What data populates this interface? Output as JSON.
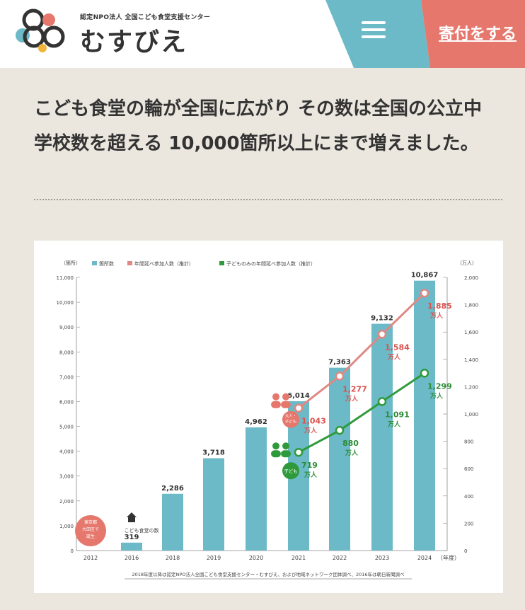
{
  "header": {
    "org_subtitle": "認定NPO法人 全国こども食堂支援センター",
    "org_name": "むすびえ",
    "donate_label": "寄付をする"
  },
  "main": {
    "headline_line1": "こども食堂の輪が全国に広がり その数は全国の公立中",
    "headline_line2": "学校数を超える 10,000箇所以上にまで増えました。"
  },
  "colors": {
    "teal": "#6cbac7",
    "coral": "#e5776c",
    "rose_line": "#e08883",
    "green_line": "#2f9a3c",
    "green_label": "#2c8c37",
    "red_label": "#d9534f",
    "text_dark": "#333333"
  },
  "chart_data": {
    "type": "bar",
    "legend_position": "top-left",
    "grid": false,
    "y_left_unit": "（箇所）",
    "y_right_unit": "（万人）",
    "x_unit": "（年度）",
    "left_ylim": [
      0,
      11000
    ],
    "right_ylim": [
      0,
      2000
    ],
    "left_ticks": [
      0,
      1000,
      2000,
      3000,
      4000,
      5000,
      6000,
      7000,
      8000,
      9000,
      10000,
      11000
    ],
    "right_ticks": [
      0,
      200,
      400,
      600,
      800,
      1000,
      1200,
      1400,
      1600,
      1800,
      2000
    ],
    "left_tick_labels": [
      "0",
      "1,000",
      "2,000",
      "3,000",
      "4,000",
      "5,000",
      "6,000",
      "7,000",
      "8,000",
      "9,000",
      "10,000",
      "11,000"
    ],
    "right_tick_labels": [
      "0",
      "200",
      "400",
      "600",
      "800",
      "1,000",
      "1,200",
      "1,400",
      "1,600",
      "1,800",
      "2,000"
    ],
    "categories": [
      "2012",
      "2016",
      "2018",
      "2019",
      "2020",
      "2021",
      "2022",
      "2023",
      "2024"
    ],
    "series": [
      {
        "name": "箇所数",
        "type": "bar",
        "axis": "left",
        "values": [
          null,
          319,
          2286,
          3718,
          4962,
          6014,
          7363,
          9132,
          10867
        ],
        "labels": [
          "",
          "319",
          "2,286",
          "3,718",
          "4,962",
          "6,014",
          "7,363",
          "9,132",
          "10,867"
        ]
      },
      {
        "name": "年間延べ参加人数（推計）",
        "type": "line",
        "axis": "right",
        "values": [
          null,
          null,
          null,
          null,
          null,
          1043,
          1277,
          1584,
          1885
        ],
        "labels": [
          "",
          "",
          "",
          "",
          "",
          "1,043",
          "1,277",
          "1,584",
          "1,885"
        ]
      },
      {
        "name": "子どものみの年間延べ参加人数（推計）",
        "type": "line",
        "axis": "right",
        "values": [
          null,
          null,
          null,
          null,
          null,
          719,
          880,
          1091,
          1299
        ],
        "labels": [
          "",
          "",
          "",
          "",
          "",
          "719",
          "880",
          "1,091",
          "1,299"
        ]
      }
    ],
    "value_unit_label": "万人",
    "annotations": {
      "birth_badge": [
        "東京都",
        "大田区で",
        "誕生"
      ],
      "kodomo_shokudo_count_label": "こども食堂の数",
      "adult_child_badge": [
        "大人・",
        "子ども"
      ],
      "child_badge": "子ども"
    },
    "footnote": "2018年度以降は認定NPO法人全国こども食堂支援センター・むすびえ、および地域ネットワーク団体調べ、2016年は朝日新聞調べ"
  }
}
